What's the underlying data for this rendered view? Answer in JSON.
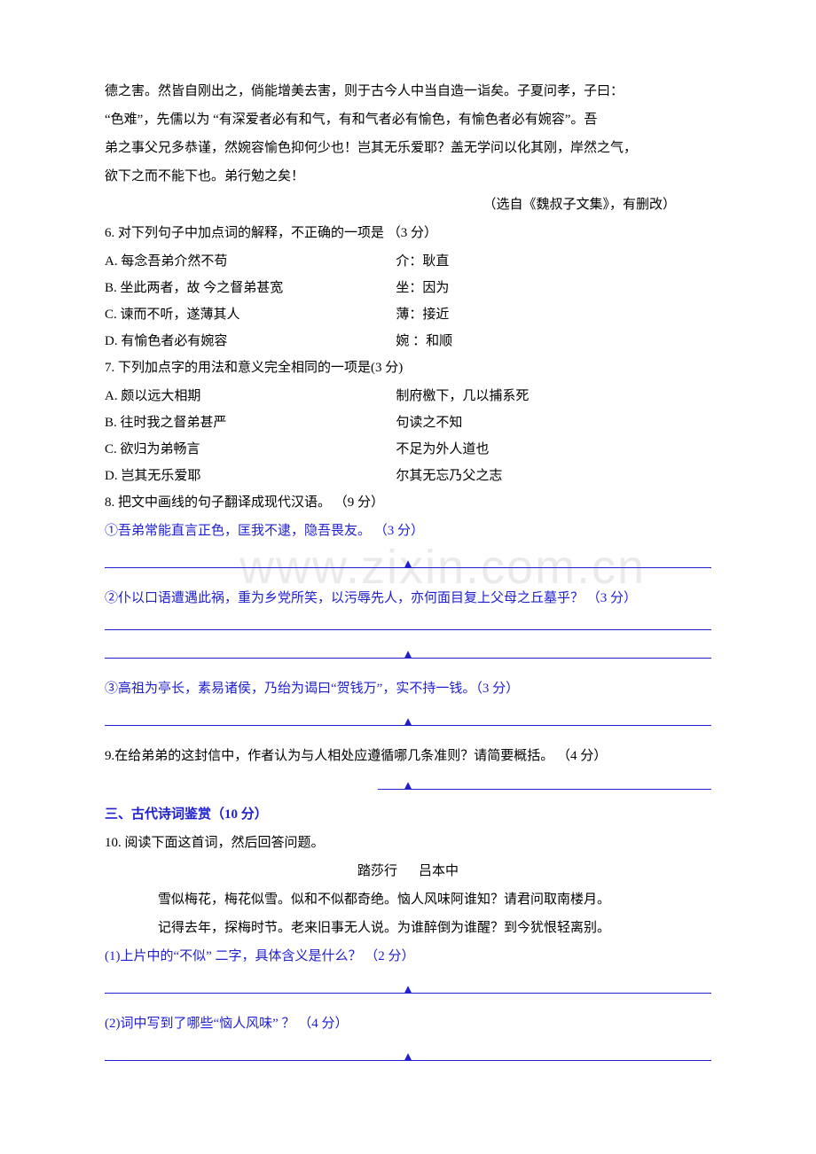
{
  "watermark": "www.zixin.com.cn",
  "intro": {
    "p1": "德之害。然皆自刚出之，倘能增美去害，则于古今人中当自造一诣矣。子夏问孝，子曰：",
    "p2": "“色难”，先儒以为 “有深爱者必有和气，有和气者必有愉色，有愉色者必有婉容”。吾",
    "p3": "弟之事父兄多恭谨，然婉容愉色抑何少也！岂其无乐爱耶？盖无学问以化其刚，岸然之气，",
    "p4": "欲下之而不能下也。弟行勉之矣！",
    "source": "（选自《魏叔子文集》，有删改）"
  },
  "q6": {
    "stem": "6. 对下列句子中加点词的解释，不正确的一项是 （3 分）",
    "A": {
      "l": "A.  每念吾弟介然不苟",
      "r": "介：耿直"
    },
    "B": {
      "l": "B.  坐此两者，故  今之督弟甚宽",
      "r": "坐：因为"
    },
    "C": {
      "l": "C.  谏而不听，遂薄其人",
      "r": "薄：接近"
    },
    "D": {
      "l": "D.  有愉色者必有婉容",
      "r": "婉 ：和顺"
    }
  },
  "q7": {
    "stem": "7. 下列加点字的用法和意义完全相同的一项是(3 分)",
    "A": {
      "l": "A.  颇以远大相期",
      "r": "制府檄下，几以捕系死"
    },
    "B": {
      "l": "B.  往时我之督弟甚严",
      "r": "句读之不知"
    },
    "C": {
      "l": "C.  欲归为弟畅言",
      "r": "不足为外人道也"
    },
    "D": {
      "l": "D.  岂其无乐爱耶",
      "r": "尔其无忘乃父之志"
    }
  },
  "q8": {
    "stem": "8. 把文中画线的句子翻译成现代汉语。  （9 分）",
    "s1": "①吾弟常能直言正色，匡我不逮，隐吾畏友。  （3 分）",
    "s2": "②仆以口语遭遇此祸，重为乡党所笑，以污辱先人，亦何面目复上父母之丘墓乎？ （3 分）",
    "s3": "③高祖为亭长，素易诸侯，乃绐为谒曰“贺钱万”，实不持一钱。（3 分）"
  },
  "q9": {
    "stem": "9.在给弟弟的这封信中，作者认为与人相处应遵循哪几条准则？请简要概括。 （4 分）"
  },
  "section3": "三、古代诗词鉴赏（10 分）",
  "q10": {
    "stem": "10.  阅读下面这首词，然后回答问题。",
    "title": "踏莎行",
    "author": "吕本中",
    "line1": "雪似梅花，梅花似雪。似和不似都奇绝。恼人风味阿谁知？请君问取南楼月。",
    "line2": "记得去年，探梅时节。老来旧事无人说。为谁醉倒为谁醒？到今犹恨轻离别。",
    "sub1": "(1)上片中的“不似”  二字，具体含义是什么？ （2 分）",
    "sub2": "(2)词中写到了哪些“恼人风味” ？ （4 分）"
  },
  "triangle": "▲"
}
